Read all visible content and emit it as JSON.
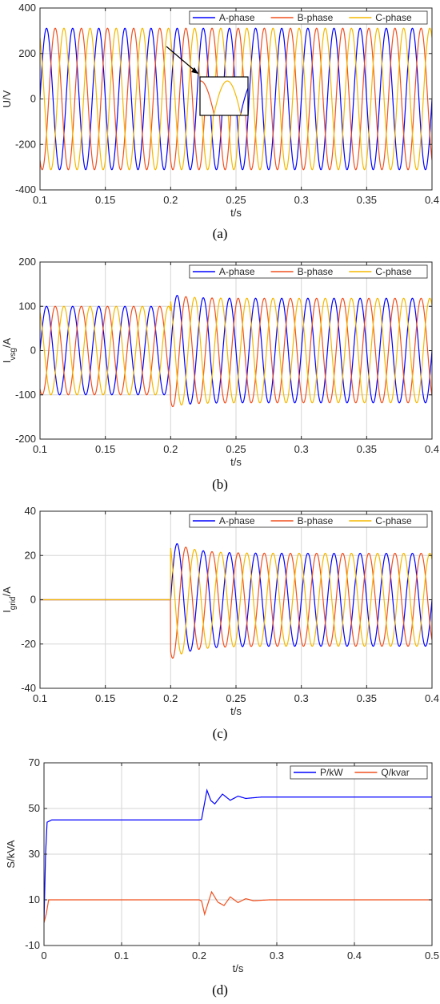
{
  "colors": {
    "a": "#0000ff",
    "b": "#f0501e",
    "c": "#f5b800",
    "grid": "#d6d6d6",
    "axis": "#262626"
  },
  "chart_data": [
    {
      "type": "line",
      "caption": "(a)",
      "xlabel": "t/s",
      "ylabel": "U/V",
      "xlim": [
        0.1,
        0.4
      ],
      "ylim": [
        -400,
        400
      ],
      "xticks": [
        0.1,
        0.15,
        0.2,
        0.25,
        0.3,
        0.35,
        0.4
      ],
      "xtick_labels": [
        "0.1",
        "0.15",
        "0.2",
        "0.25",
        "0.3",
        "0.35",
        "0.4"
      ],
      "yticks": [
        -400,
        -200,
        0,
        200,
        400
      ],
      "ytick_labels": [
        "-400",
        "-200",
        "0",
        "200",
        "400"
      ],
      "grid": true,
      "legend_position": "top-right",
      "legend_layout": "horizontal",
      "has_inset_zoom": true,
      "series": [
        {
          "name": "A-phase",
          "color_key": "a",
          "signal": "sine",
          "frequency_hz": 50,
          "phase_deg": 0,
          "segments": [
            {
              "from": 0.1,
              "to": 0.4,
              "amplitude": 311
            }
          ]
        },
        {
          "name": "B-phase",
          "color_key": "b",
          "signal": "sine",
          "frequency_hz": 50,
          "phase_deg": -120,
          "segments": [
            {
              "from": 0.1,
              "to": 0.4,
              "amplitude": 311
            }
          ]
        },
        {
          "name": "C-phase",
          "color_key": "c",
          "signal": "sine",
          "frequency_hz": 50,
          "phase_deg": 120,
          "segments": [
            {
              "from": 0.1,
              "to": 0.4,
              "amplitude": 311
            }
          ]
        }
      ]
    },
    {
      "type": "line",
      "caption": "(b)",
      "xlabel": "t/s",
      "ylabel": "I",
      "ylabel_sub": "vsg",
      "ylabel_suffix": "/A",
      "xlim": [
        0.1,
        0.4
      ],
      "ylim": [
        -200,
        200
      ],
      "xticks": [
        0.1,
        0.15,
        0.2,
        0.25,
        0.3,
        0.35,
        0.4
      ],
      "xtick_labels": [
        "0.1",
        "0.15",
        "0.2",
        "0.25",
        "0.3",
        "0.35",
        "0.4"
      ],
      "yticks": [
        -200,
        -100,
        0,
        100,
        200
      ],
      "ytick_labels": [
        "-200",
        "-100",
        "0",
        "100",
        "200"
      ],
      "grid": true,
      "legend_position": "top-right",
      "legend_layout": "horizontal",
      "series": [
        {
          "name": "A-phase",
          "color_key": "a",
          "signal": "sine",
          "frequency_hz": 50,
          "phase_deg": 0,
          "segments": [
            {
              "from": 0.1,
              "to": 0.2,
              "amplitude": 100
            },
            {
              "from": 0.2,
              "to": 0.4,
              "amplitude": 118,
              "overshoot": 10,
              "tau": 0.012
            }
          ]
        },
        {
          "name": "B-phase",
          "color_key": "b",
          "signal": "sine",
          "frequency_hz": 50,
          "phase_deg": -120,
          "segments": [
            {
              "from": 0.1,
              "to": 0.2,
              "amplitude": 100
            },
            {
              "from": 0.2,
              "to": 0.4,
              "amplitude": 118,
              "overshoot": 10,
              "tau": 0.012
            }
          ]
        },
        {
          "name": "C-phase",
          "color_key": "c",
          "signal": "sine",
          "frequency_hz": 50,
          "phase_deg": 120,
          "segments": [
            {
              "from": 0.1,
              "to": 0.2,
              "amplitude": 100
            },
            {
              "from": 0.2,
              "to": 0.4,
              "amplitude": 118,
              "overshoot": 10,
              "tau": 0.012
            }
          ]
        }
      ]
    },
    {
      "type": "line",
      "caption": "(c)",
      "xlabel": "t/s",
      "ylabel": "I",
      "ylabel_sub": "grid",
      "ylabel_suffix": "/A",
      "xlim": [
        0.1,
        0.4
      ],
      "ylim": [
        -40,
        40
      ],
      "xticks": [
        0.1,
        0.15,
        0.2,
        0.25,
        0.3,
        0.35,
        0.4
      ],
      "xtick_labels": [
        "0.1",
        "0.15",
        "0.2",
        "0.25",
        "0.3",
        "0.35",
        "0.4"
      ],
      "yticks": [
        -40,
        -20,
        0,
        20,
        40
      ],
      "ytick_labels": [
        "-40",
        "-20",
        "0",
        "20",
        "40"
      ],
      "grid": true,
      "legend_position": "top-right",
      "legend_layout": "horizontal",
      "series": [
        {
          "name": "A-phase",
          "color_key": "a",
          "signal": "sine",
          "frequency_hz": 50,
          "phase_deg": 0,
          "segments": [
            {
              "from": 0.1,
              "to": 0.2,
              "amplitude": 0
            },
            {
              "from": 0.2,
              "to": 0.4,
              "amplitude": 21,
              "overshoot": 6,
              "tau": 0.015
            }
          ]
        },
        {
          "name": "B-phase",
          "color_key": "b",
          "signal": "sine",
          "frequency_hz": 50,
          "phase_deg": -120,
          "segments": [
            {
              "from": 0.1,
              "to": 0.2,
              "amplitude": 0
            },
            {
              "from": 0.2,
              "to": 0.4,
              "amplitude": 21,
              "overshoot": 6,
              "tau": 0.015
            }
          ]
        },
        {
          "name": "C-phase",
          "color_key": "c",
          "signal": "sine",
          "frequency_hz": 50,
          "phase_deg": 120,
          "segments": [
            {
              "from": 0.1,
              "to": 0.2,
              "amplitude": 0
            },
            {
              "from": 0.2,
              "to": 0.4,
              "amplitude": 21,
              "overshoot": 6,
              "tau": 0.015
            }
          ]
        }
      ]
    },
    {
      "type": "line",
      "caption": "(d)",
      "xlabel": "t/s",
      "ylabel": "S/kVA",
      "xlim": [
        0,
        0.5
      ],
      "ylim": [
        -10,
        70
      ],
      "xticks": [
        0,
        0.1,
        0.2,
        0.3,
        0.4,
        0.5
      ],
      "xtick_labels": [
        "0",
        "0.1",
        "0.2",
        "0.3",
        "0.4",
        "0.5"
      ],
      "yticks": [
        -10,
        10,
        30,
        50,
        70
      ],
      "ytick_labels": [
        "-10",
        "10",
        "30",
        "50",
        "70"
      ],
      "grid": true,
      "legend_position": "top-right",
      "legend_layout": "horizontal",
      "series": [
        {
          "name": "P/kW",
          "color_key": "a",
          "signal": "power",
          "points": [
            [
              0,
              0
            ],
            [
              0.002,
              30
            ],
            [
              0.004,
              44
            ],
            [
              0.01,
              45
            ],
            [
              0.2,
              45
            ],
            [
              0.203,
              45.2
            ],
            [
              0.21,
              58
            ],
            [
              0.215,
              53.5
            ],
            [
              0.22,
              52
            ],
            [
              0.23,
              56.3
            ],
            [
              0.24,
              53.6
            ],
            [
              0.25,
              55.4
            ],
            [
              0.26,
              54.4
            ],
            [
              0.28,
              55
            ],
            [
              0.5,
              55
            ]
          ]
        },
        {
          "name": "Q/kvar",
          "color_key": "b",
          "signal": "power",
          "points": [
            [
              0,
              0
            ],
            [
              0.003,
              4
            ],
            [
              0.006,
              10
            ],
            [
              0.2,
              10
            ],
            [
              0.203,
              9.5
            ],
            [
              0.207,
              3.7
            ],
            [
              0.216,
              13.5
            ],
            [
              0.224,
              9
            ],
            [
              0.232,
              7.5
            ],
            [
              0.24,
              11.3
            ],
            [
              0.25,
              8.8
            ],
            [
              0.26,
              10.5
            ],
            [
              0.27,
              9.6
            ],
            [
              0.29,
              10
            ],
            [
              0.5,
              10
            ]
          ]
        }
      ]
    }
  ]
}
